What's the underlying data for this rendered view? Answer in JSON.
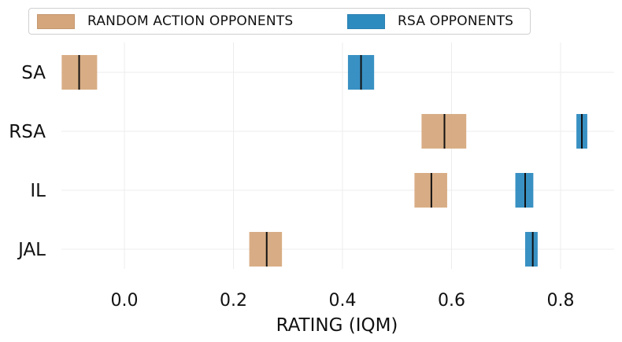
{
  "chart_data": {
    "type": "interval",
    "xlabel": "RATING (IQM)",
    "ylabel": "",
    "xlim": [
      -0.12,
      0.9
    ],
    "x_ticks": [
      "0.0",
      "0.2",
      "0.4",
      "0.6",
      "0.8"
    ],
    "x_tick_values": [
      0.0,
      0.2,
      0.4,
      0.6,
      0.8
    ],
    "categories": [
      "SA",
      "RSA",
      "IL",
      "JAL"
    ],
    "grid": true,
    "legend_placement": "top",
    "series": [
      {
        "name": "RANDOM ACTION OPPONENTS",
        "color": "#d5a67b",
        "intervals": [
          {
            "category": "SA",
            "low": -0.115,
            "high": -0.05,
            "median": -0.083
          },
          {
            "category": "RSA",
            "low": 0.545,
            "high": 0.627,
            "median": 0.587
          },
          {
            "category": "IL",
            "low": 0.532,
            "high": 0.592,
            "median": 0.563
          },
          {
            "category": "JAL",
            "low": 0.229,
            "high": 0.289,
            "median": 0.261
          }
        ]
      },
      {
        "name": "RSA OPPONENTS",
        "color": "#2e8bc0",
        "intervals": [
          {
            "category": "SA",
            "low": 0.41,
            "high": 0.458,
            "median": 0.434
          },
          {
            "category": "RSA",
            "low": 0.829,
            "high": 0.849,
            "median": 0.839
          },
          {
            "category": "IL",
            "low": 0.717,
            "high": 0.75,
            "median": 0.735
          },
          {
            "category": "JAL",
            "low": 0.735,
            "high": 0.758,
            "median": 0.749
          }
        ]
      }
    ]
  }
}
